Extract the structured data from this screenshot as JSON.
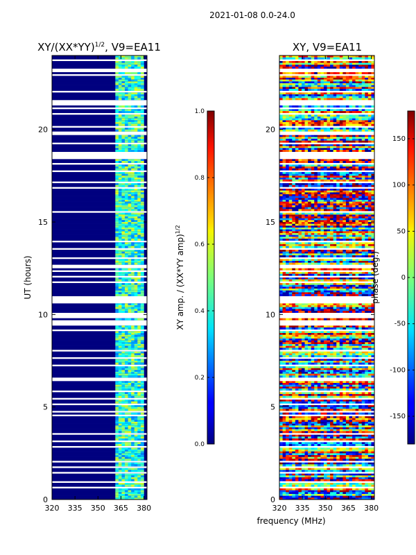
{
  "suptitle": "2021-01-08 0.0-24.0",
  "chart_data": [
    {
      "type": "heatmap",
      "title_main": "XY/(XX*YY)",
      "title_sup": "1/2",
      "title_tail": ", V9=EA11",
      "ylabel": "UT (hours)",
      "xlim": [
        320,
        382
      ],
      "ylim": [
        0,
        24
      ],
      "xticks": [
        320,
        335,
        350,
        365,
        380
      ],
      "yticks": [
        0,
        5,
        10,
        15,
        20
      ],
      "colorbar": {
        "label_main": "XY amp. / (XX*YY amp)",
        "label_sup": "1/2",
        "range": [
          0.0,
          1.0
        ],
        "ticks": [
          "0.0",
          "0.2",
          "0.4",
          "0.6",
          "0.8",
          "1.0"
        ],
        "colormap": "jet"
      }
    },
    {
      "type": "heatmap",
      "title": "XY, V9=EA11",
      "xlabel": "frequency (MHz)",
      "xlim": [
        320,
        382
      ],
      "ylim": [
        0,
        24
      ],
      "xticks": [
        320,
        335,
        350,
        365,
        380
      ],
      "yticks": [
        0,
        5,
        10,
        15,
        20
      ],
      "colorbar": {
        "label": "phase (deg.)",
        "range": [
          -180,
          180
        ],
        "ticks": [
          -150,
          -100,
          -50,
          0,
          50,
          100,
          150
        ],
        "colormap": "jet"
      }
    }
  ]
}
